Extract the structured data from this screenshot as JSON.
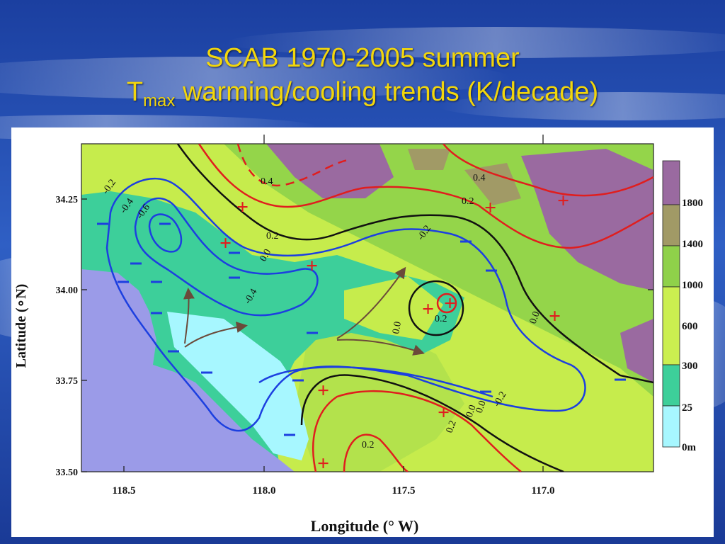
{
  "slide": {
    "title_line1": "SCAB 1970-2005 summer",
    "title_main": "T",
    "title_sub": "max",
    "title_rest": " warming/cooling trends (K/decade)"
  },
  "map": {
    "y_axis_label": "Latitude (∘N)",
    "x_axis_label": "Longitude (° W)",
    "lat_ticks": [
      "34.25",
      "34.00",
      "33.75",
      "33.50"
    ],
    "lon_ticks": [
      "118.5",
      "118.0",
      "117.5",
      "117.0"
    ],
    "contour_labels": [
      "-0.2",
      "-0.4",
      "-0.6",
      "0.4",
      "0.2",
      "0.0",
      "-0.4",
      "0.2",
      "0.4",
      "0.2",
      "-0.2",
      "0.0",
      "0.2",
      "0.0",
      "0.0",
      "0.2",
      "0.0",
      "-0.2",
      "0.4"
    ],
    "legend_labels": [
      "1800",
      "1400",
      "1000",
      "600",
      "300",
      "25",
      "0m"
    ],
    "legend_colors": [
      "#9a6aa0",
      "#a19a66",
      "#8fd14a",
      "#cbef50",
      "#3dcf9a",
      "#a7f7ff"
    ],
    "symbols": {
      "warming": "+",
      "cooling": "–"
    }
  }
}
